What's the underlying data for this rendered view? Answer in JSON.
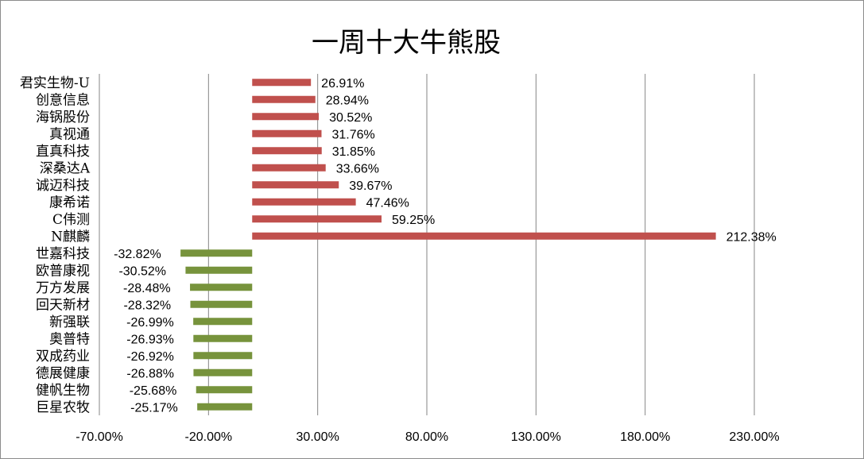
{
  "chart_data": {
    "type": "bar",
    "orientation": "horizontal",
    "title": "一周十大牛熊股",
    "categories": [
      "君实生物-U",
      "创意信息",
      "海锅股份",
      "真视通",
      "直真科技",
      "深桑达A",
      "诚迈科技",
      "康希诺",
      "C伟测",
      "N麒麟",
      "世嘉科技",
      "欧普康视",
      "万方发展",
      "回天新材",
      "新强联",
      "奥普特",
      "双成药业",
      "德展健康",
      "健帆生物",
      "巨星农牧"
    ],
    "values": [
      26.91,
      28.94,
      30.52,
      31.76,
      31.85,
      33.66,
      39.67,
      47.46,
      59.25,
      212.38,
      -32.82,
      -30.52,
      -28.48,
      -28.32,
      -26.99,
      -26.93,
      -26.92,
      -26.88,
      -25.68,
      -25.17
    ],
    "data_labels": [
      "26.91%",
      "28.94%",
      "30.52%",
      "31.76%",
      "31.85%",
      "33.66%",
      "39.67%",
      "47.46%",
      "59.25%",
      "212.38%",
      "-32.82%",
      "-30.52%",
      "-28.48%",
      "-28.32%",
      "-26.99%",
      "-26.93%",
      "-26.92%",
      "-26.88%",
      "-25.68%",
      "-25.17%"
    ],
    "x_ticks": [
      -70,
      -20,
      30,
      80,
      130,
      180,
      230
    ],
    "x_tick_labels": [
      "-70.00%",
      "-20.00%",
      "30.00%",
      "80.00%",
      "130.00%",
      "180.00%",
      "230.00%"
    ],
    "xlim": [
      -70,
      230
    ],
    "xlabel": "",
    "ylabel": "",
    "grid": "vertical",
    "legend": "none",
    "colors": {
      "positive": "#c0504d",
      "negative": "#77933c",
      "grid": "#868686"
    }
  }
}
